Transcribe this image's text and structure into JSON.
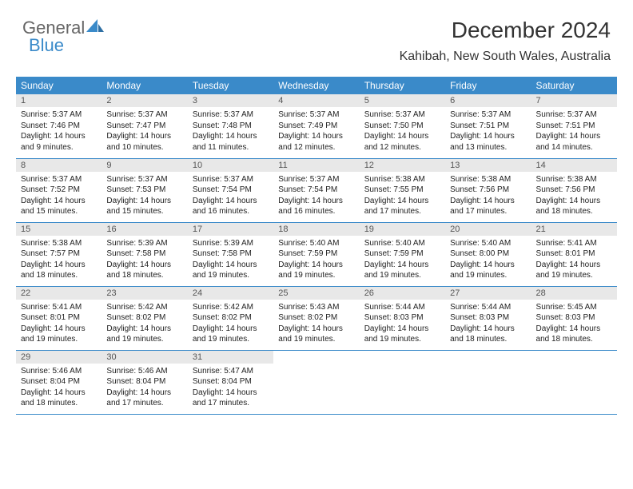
{
  "logo": {
    "text1": "General",
    "text2": "Blue"
  },
  "title": "December 2024",
  "location": "Kahibah, New South Wales, Australia",
  "colors": {
    "header_bg": "#3a8ac9",
    "header_text": "#ffffff",
    "daynum_bg": "#e8e8e8",
    "text": "#222222",
    "border": "#3a8ac9"
  },
  "weekdays": [
    "Sunday",
    "Monday",
    "Tuesday",
    "Wednesday",
    "Thursday",
    "Friday",
    "Saturday"
  ],
  "days": [
    {
      "n": "1",
      "sr": "5:37 AM",
      "ss": "7:46 PM",
      "dl": "14 hours and 9 minutes."
    },
    {
      "n": "2",
      "sr": "5:37 AM",
      "ss": "7:47 PM",
      "dl": "14 hours and 10 minutes."
    },
    {
      "n": "3",
      "sr": "5:37 AM",
      "ss": "7:48 PM",
      "dl": "14 hours and 11 minutes."
    },
    {
      "n": "4",
      "sr": "5:37 AM",
      "ss": "7:49 PM",
      "dl": "14 hours and 12 minutes."
    },
    {
      "n": "5",
      "sr": "5:37 AM",
      "ss": "7:50 PM",
      "dl": "14 hours and 12 minutes."
    },
    {
      "n": "6",
      "sr": "5:37 AM",
      "ss": "7:51 PM",
      "dl": "14 hours and 13 minutes."
    },
    {
      "n": "7",
      "sr": "5:37 AM",
      "ss": "7:51 PM",
      "dl": "14 hours and 14 minutes."
    },
    {
      "n": "8",
      "sr": "5:37 AM",
      "ss": "7:52 PM",
      "dl": "14 hours and 15 minutes."
    },
    {
      "n": "9",
      "sr": "5:37 AM",
      "ss": "7:53 PM",
      "dl": "14 hours and 15 minutes."
    },
    {
      "n": "10",
      "sr": "5:37 AM",
      "ss": "7:54 PM",
      "dl": "14 hours and 16 minutes."
    },
    {
      "n": "11",
      "sr": "5:37 AM",
      "ss": "7:54 PM",
      "dl": "14 hours and 16 minutes."
    },
    {
      "n": "12",
      "sr": "5:38 AM",
      "ss": "7:55 PM",
      "dl": "14 hours and 17 minutes."
    },
    {
      "n": "13",
      "sr": "5:38 AM",
      "ss": "7:56 PM",
      "dl": "14 hours and 17 minutes."
    },
    {
      "n": "14",
      "sr": "5:38 AM",
      "ss": "7:56 PM",
      "dl": "14 hours and 18 minutes."
    },
    {
      "n": "15",
      "sr": "5:38 AM",
      "ss": "7:57 PM",
      "dl": "14 hours and 18 minutes."
    },
    {
      "n": "16",
      "sr": "5:39 AM",
      "ss": "7:58 PM",
      "dl": "14 hours and 18 minutes."
    },
    {
      "n": "17",
      "sr": "5:39 AM",
      "ss": "7:58 PM",
      "dl": "14 hours and 19 minutes."
    },
    {
      "n": "18",
      "sr": "5:40 AM",
      "ss": "7:59 PM",
      "dl": "14 hours and 19 minutes."
    },
    {
      "n": "19",
      "sr": "5:40 AM",
      "ss": "7:59 PM",
      "dl": "14 hours and 19 minutes."
    },
    {
      "n": "20",
      "sr": "5:40 AM",
      "ss": "8:00 PM",
      "dl": "14 hours and 19 minutes."
    },
    {
      "n": "21",
      "sr": "5:41 AM",
      "ss": "8:01 PM",
      "dl": "14 hours and 19 minutes."
    },
    {
      "n": "22",
      "sr": "5:41 AM",
      "ss": "8:01 PM",
      "dl": "14 hours and 19 minutes."
    },
    {
      "n": "23",
      "sr": "5:42 AM",
      "ss": "8:02 PM",
      "dl": "14 hours and 19 minutes."
    },
    {
      "n": "24",
      "sr": "5:42 AM",
      "ss": "8:02 PM",
      "dl": "14 hours and 19 minutes."
    },
    {
      "n": "25",
      "sr": "5:43 AM",
      "ss": "8:02 PM",
      "dl": "14 hours and 19 minutes."
    },
    {
      "n": "26",
      "sr": "5:44 AM",
      "ss": "8:03 PM",
      "dl": "14 hours and 19 minutes."
    },
    {
      "n": "27",
      "sr": "5:44 AM",
      "ss": "8:03 PM",
      "dl": "14 hours and 18 minutes."
    },
    {
      "n": "28",
      "sr": "5:45 AM",
      "ss": "8:03 PM",
      "dl": "14 hours and 18 minutes."
    },
    {
      "n": "29",
      "sr": "5:46 AM",
      "ss": "8:04 PM",
      "dl": "14 hours and 18 minutes."
    },
    {
      "n": "30",
      "sr": "5:46 AM",
      "ss": "8:04 PM",
      "dl": "14 hours and 17 minutes."
    },
    {
      "n": "31",
      "sr": "5:47 AM",
      "ss": "8:04 PM",
      "dl": "14 hours and 17 minutes."
    }
  ],
  "labels": {
    "sunrise": "Sunrise: ",
    "sunset": "Sunset: ",
    "daylight": "Daylight: "
  }
}
